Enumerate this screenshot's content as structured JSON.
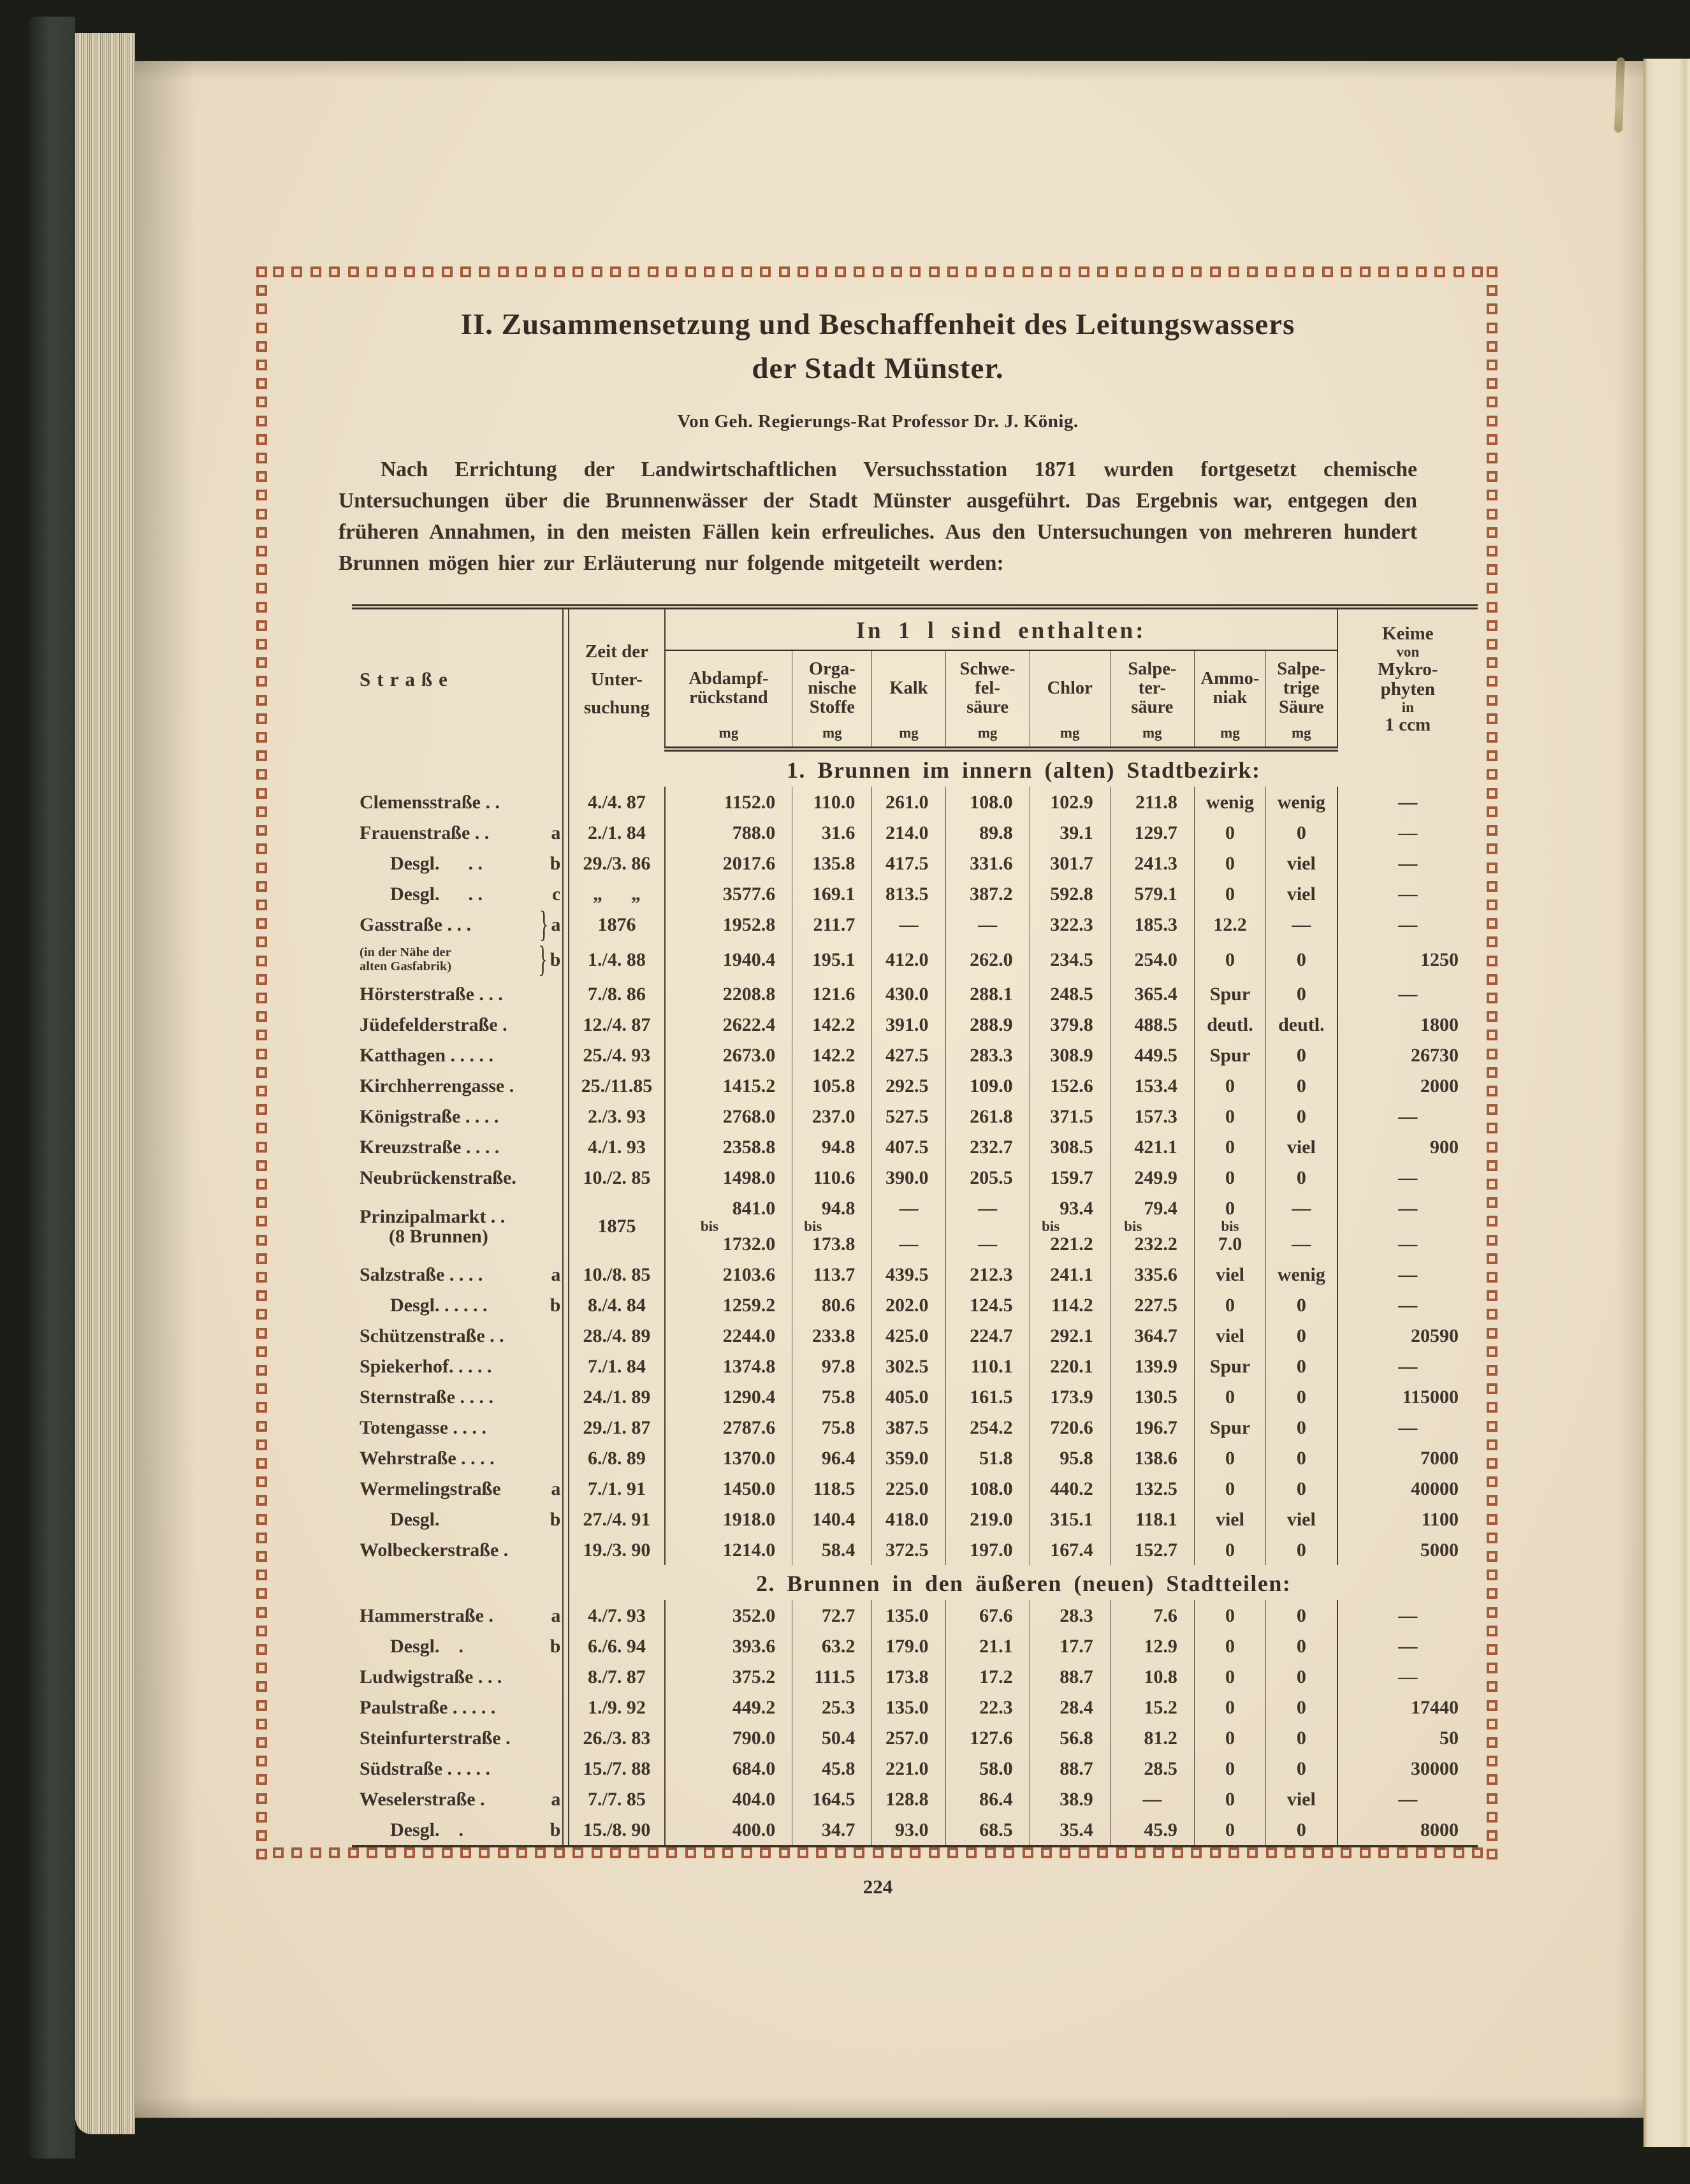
{
  "page": {
    "number": "224",
    "title_line1": "II. Zusammensetzung und Beschaffenheit des Leitungswassers",
    "title_line2": "der Stadt Münster.",
    "byline": "Von Geh. Regierungs-Rat Professor Dr. J. König.",
    "paragraph": "Nach Errichtung der Landwirtschaftlichen Versuchsstation 1871 wurden fortgesetzt chemische Untersuchungen über die Brunnenwässer der Stadt Münster ausgeführt. Das Ergebnis war, entgegen den früheren Annahmen, in den meisten Fällen kein erfreuliches. Aus den Untersuchungen von mehreren hundert Brunnen mögen hier zur Erläuterung nur folgende mitgeteilt werden:"
  },
  "colors": {
    "page_cream": "#ecdfc7",
    "ink": "#37302a",
    "border_square_red": "#a65a38",
    "cover_green": "#3b423b"
  },
  "table": {
    "col_street": "Straße",
    "col_time": [
      "Zeit der",
      "Unter-",
      "suchung"
    ],
    "group_header": "In 1 l sind enthalten:",
    "sub_columns": [
      {
        "lines": [
          "Abdampf-",
          "rückstand"
        ],
        "unit": "mg"
      },
      {
        "lines": [
          "Orga-",
          "nische",
          "Stoffe"
        ],
        "unit": "mg"
      },
      {
        "lines": [
          "Kalk"
        ],
        "unit": "mg"
      },
      {
        "lines": [
          "Schwe-",
          "fel-",
          "säure"
        ],
        "unit": "mg"
      },
      {
        "lines": [
          "Chlor"
        ],
        "unit": "mg"
      },
      {
        "lines": [
          "Salpe-",
          "ter-",
          "säure"
        ],
        "unit": "mg"
      },
      {
        "lines": [
          "Ammo-",
          "niak"
        ],
        "unit": "mg"
      },
      {
        "lines": [
          "Salpe-",
          "trige",
          "Säure"
        ],
        "unit": "mg"
      }
    ],
    "col_keime": [
      "Keime",
      "von",
      "Mykro-",
      "phyten",
      "in",
      "1 ccm"
    ],
    "sections": [
      {
        "heading": "1. Brunnen im innern (alten) Stadtbezirk:",
        "rows": [
          {
            "label": "Clemensstraße . .",
            "date": "4./4. 87",
            "values": [
              "1152.0",
              "110.0",
              "261.0",
              "108.0",
              "102.9",
              "211.8",
              "wenig",
              "wenig",
              "—"
            ]
          },
          {
            "label": "Frauenstraße . .",
            "tag": "a",
            "date": "2./1. 84",
            "values": [
              "788.0",
              "31.6",
              "214.0",
              "89.8",
              "39.1",
              "129.7",
              "0",
              "0",
              "—"
            ]
          },
          {
            "label": "Desgl.      . .",
            "tag": "b",
            "indent": true,
            "date": "29./3. 86",
            "values": [
              "2017.6",
              "135.8",
              "417.5",
              "331.6",
              "301.7",
              "241.3",
              "0",
              "viel",
              "—"
            ]
          },
          {
            "label": "Desgl.      . .",
            "tag": "c",
            "indent": true,
            "date": "„      „",
            "values": [
              "3577.6",
              "169.1",
              "813.5",
              "387.2",
              "592.8",
              "579.1",
              "0",
              "viel",
              "—"
            ]
          },
          {
            "label": "Gasstraße . . .",
            "tag": "a",
            "brace": true,
            "date": "1876",
            "values": [
              "1952.8",
              "211.7",
              "—",
              "—",
              "322.3",
              "185.3",
              "12.2",
              "—",
              "—"
            ]
          },
          {
            "note": [
              "(in der Nähe der",
              "alten Gasfabrik)"
            ],
            "tag": "b",
            "brace": true,
            "date": "1./4. 88",
            "values": [
              "1940.4",
              "195.1",
              "412.0",
              "262.0",
              "234.5",
              "254.0",
              "0",
              "0",
              "1250"
            ]
          },
          {
            "label": "Hörsterstraße . . .",
            "date": "7./8. 86",
            "values": [
              "2208.8",
              "121.6",
              "430.0",
              "288.1",
              "248.5",
              "365.4",
              "Spur",
              "0",
              "—"
            ]
          },
          {
            "label": "Jüdefelderstraße .",
            "date": "12./4. 87",
            "values": [
              "2622.4",
              "142.2",
              "391.0",
              "288.9",
              "379.8",
              "488.5",
              "deutl.",
              "deutl.",
              "1800"
            ]
          },
          {
            "label": "Katthagen . . . . .",
            "date": "25./4. 93",
            "values": [
              "2673.0",
              "142.2",
              "427.5",
              "283.3",
              "308.9",
              "449.5",
              "Spur",
              "0",
              "26730"
            ]
          },
          {
            "label": "Kirchherrengasse .",
            "date": "25./11.85",
            "values": [
              "1415.2",
              "105.8",
              "292.5",
              "109.0",
              "152.6",
              "153.4",
              "0",
              "0",
              "2000"
            ]
          },
          {
            "label": "Königstraße . . . .",
            "date": "2./3. 93",
            "values": [
              "2768.0",
              "237.0",
              "527.5",
              "261.8",
              "371.5",
              "157.3",
              "0",
              "0",
              "—"
            ]
          },
          {
            "label": "Kreuzstraße . . . .",
            "date": "4./1. 93",
            "values": [
              "2358.8",
              "94.8",
              "407.5",
              "232.7",
              "308.5",
              "421.1",
              "0",
              "viel",
              "900"
            ]
          },
          {
            "label": "Neubrückenstraße.",
            "date": "10./2. 85",
            "values": [
              "1498.0",
              "110.6",
              "390.0",
              "205.5",
              "159.7",
              "249.9",
              "0",
              "0",
              "—"
            ]
          },
          {
            "label": "Prinzipalmarkt . .",
            "label2": "(8 Brunnen)",
            "date": "1875",
            "values": [
              [
                "841.0",
                "bis",
                "1732.0"
              ],
              [
                "94.8",
                "bis",
                "173.8"
              ],
              [
                "—",
                "",
                "—"
              ],
              [
                "—",
                "",
                "—"
              ],
              [
                "93.4",
                "bis",
                "221.2"
              ],
              [
                "79.4",
                "bis",
                "232.2"
              ],
              [
                "0",
                "bis",
                "7.0"
              ],
              [
                "—",
                "",
                "—"
              ],
              [
                "—",
                "",
                "—"
              ]
            ]
          },
          {
            "label": "Salzstraße . . . .",
            "tag": "a",
            "date": "10./8. 85",
            "values": [
              "2103.6",
              "113.7",
              "439.5",
              "212.3",
              "241.1",
              "335.6",
              "viel",
              "wenig",
              "—"
            ]
          },
          {
            "label": "Desgl. . . . . .",
            "tag": "b",
            "indent": true,
            "date": "8./4. 84",
            "values": [
              "1259.2",
              "80.6",
              "202.0",
              "124.5",
              "114.2",
              "227.5",
              "0",
              "0",
              "—"
            ]
          },
          {
            "label": "Schützenstraße . .",
            "date": "28./4. 89",
            "values": [
              "2244.0",
              "233.8",
              "425.0",
              "224.7",
              "292.1",
              "364.7",
              "viel",
              "0",
              "20590"
            ]
          },
          {
            "label": "Spiekerhof. . . . .",
            "date": "7./1. 84",
            "values": [
              "1374.8",
              "97.8",
              "302.5",
              "110.1",
              "220.1",
              "139.9",
              "Spur",
              "0",
              "—"
            ]
          },
          {
            "label": "Sternstraße . . . .",
            "date": "24./1. 89",
            "values": [
              "1290.4",
              "75.8",
              "405.0",
              "161.5",
              "173.9",
              "130.5",
              "0",
              "0",
              "115000"
            ]
          },
          {
            "label": "Totengasse . . . .",
            "date": "29./1. 87",
            "values": [
              "2787.6",
              "75.8",
              "387.5",
              "254.2",
              "720.6",
              "196.7",
              "Spur",
              "0",
              "—"
            ]
          },
          {
            "label": "Wehrstraße . . . .",
            "date": "6./8. 89",
            "values": [
              "1370.0",
              "96.4",
              "359.0",
              "51.8",
              "95.8",
              "138.6",
              "0",
              "0",
              "7000"
            ]
          },
          {
            "label": "Wermelingstraße",
            "tag": "a",
            "date": "7./1. 91",
            "values": [
              "1450.0",
              "118.5",
              "225.0",
              "108.0",
              "440.2",
              "132.5",
              "0",
              "0",
              "40000"
            ]
          },
          {
            "label": "Desgl.",
            "tag": "b",
            "indent": true,
            "date": "27./4. 91",
            "values": [
              "1918.0",
              "140.4",
              "418.0",
              "219.0",
              "315.1",
              "118.1",
              "viel",
              "viel",
              "1100"
            ]
          },
          {
            "label": "Wolbeckerstraße .",
            "date": "19./3. 90",
            "values": [
              "1214.0",
              "58.4",
              "372.5",
              "197.0",
              "167.4",
              "152.7",
              "0",
              "0",
              "5000"
            ]
          }
        ]
      },
      {
        "heading": "2. Brunnen in den äußeren (neuen) Stadtteilen:",
        "rows": [
          {
            "label": "Hammerstraße .",
            "tag": "a",
            "date": "4./7. 93",
            "values": [
              "352.0",
              "72.7",
              "135.0",
              "67.6",
              "28.3",
              "7.6",
              "0",
              "0",
              "—"
            ]
          },
          {
            "label": "Desgl.    .",
            "tag": "b",
            "indent": true,
            "date": "6./6. 94",
            "values": [
              "393.6",
              "63.2",
              "179.0",
              "21.1",
              "17.7",
              "12.9",
              "0",
              "0",
              "—"
            ]
          },
          {
            "label": "Ludwigstraße . . .",
            "date": "8./7. 87",
            "values": [
              "375.2",
              "111.5",
              "173.8",
              "17.2",
              "88.7",
              "10.8",
              "0",
              "0",
              "—"
            ]
          },
          {
            "label": "Paulstraße . . . . .",
            "date": "1./9. 92",
            "values": [
              "449.2",
              "25.3",
              "135.0",
              "22.3",
              "28.4",
              "15.2",
              "0",
              "0",
              "17440"
            ]
          },
          {
            "label": "Steinfurterstraße .",
            "date": "26./3. 83",
            "values": [
              "790.0",
              "50.4",
              "257.0",
              "127.6",
              "56.8",
              "81.2",
              "0",
              "0",
              "50"
            ]
          },
          {
            "label": "Südstraße . . . . .",
            "date": "15./7. 88",
            "values": [
              "684.0",
              "45.8",
              "221.0",
              "58.0",
              "88.7",
              "28.5",
              "0",
              "0",
              "30000"
            ]
          },
          {
            "label": "Weselerstraße .",
            "tag": "a",
            "date": "7./7. 85",
            "values": [
              "404.0",
              "164.5",
              "128.8",
              "86.4",
              "38.9",
              "—",
              "0",
              "viel",
              "—"
            ]
          },
          {
            "label": "Desgl.    .",
            "tag": "b",
            "indent": true,
            "date": "15./8. 90",
            "values": [
              "400.0",
              "34.7",
              "93.0",
              "68.5",
              "35.4",
              "45.9",
              "0",
              "0",
              "8000"
            ]
          }
        ]
      }
    ]
  }
}
